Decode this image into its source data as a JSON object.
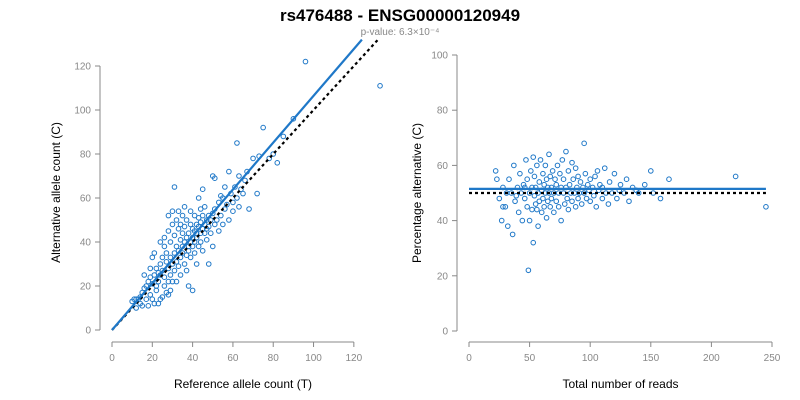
{
  "figure": {
    "title": "rs476488 - ENSG00000120949",
    "subtitle": "p-value: 6.3×10⁻⁴"
  },
  "colors": {
    "points": "#1f78c8",
    "fit_line": "#1f78c8",
    "reference_line": "#000000"
  },
  "chart_data": [
    {
      "type": "scatter",
      "xlabel": "Reference allele count (T)",
      "ylabel": "Alternative allele count (C)",
      "xlim": [
        0,
        130
      ],
      "ylim": [
        0,
        125
      ],
      "xticks": [
        0,
        20,
        40,
        60,
        80,
        100,
        120
      ],
      "yticks": [
        0,
        20,
        40,
        60,
        80,
        100,
        120
      ],
      "grid": false,
      "fit_line": {
        "x": [
          0,
          124
        ],
        "y": [
          0,
          132
        ]
      },
      "reference_line": {
        "x": [
          0,
          132
        ],
        "y": [
          0,
          132
        ]
      },
      "points": [
        [
          10,
          13
        ],
        [
          11,
          14
        ],
        [
          12,
          10
        ],
        [
          12,
          14
        ],
        [
          13,
          14
        ],
        [
          14,
          12
        ],
        [
          14,
          15
        ],
        [
          15,
          17
        ],
        [
          15,
          11
        ],
        [
          16,
          19
        ],
        [
          17,
          20
        ],
        [
          17,
          14
        ],
        [
          18,
          22
        ],
        [
          18,
          11
        ],
        [
          19,
          16
        ],
        [
          19,
          24
        ],
        [
          20,
          21
        ],
        [
          20,
          14
        ],
        [
          20,
          33
        ],
        [
          21,
          25
        ],
        [
          21,
          12
        ],
        [
          21,
          35
        ],
        [
          22,
          18
        ],
        [
          22,
          28
        ],
        [
          22,
          20
        ],
        [
          23,
          12
        ],
        [
          23,
          22
        ],
        [
          24,
          30
        ],
        [
          24,
          25
        ],
        [
          24,
          40
        ],
        [
          25,
          15
        ],
        [
          25,
          27
        ],
        [
          25,
          33
        ],
        [
          26,
          38
        ],
        [
          26,
          20
        ],
        [
          26,
          24
        ],
        [
          26,
          42
        ],
        [
          27,
          17
        ],
        [
          27,
          31
        ],
        [
          27,
          35
        ],
        [
          28,
          22
        ],
        [
          28,
          45
        ],
        [
          28,
          28
        ],
        [
          28,
          52
        ],
        [
          29,
          33
        ],
        [
          29,
          18
        ],
        [
          29,
          40
        ],
        [
          29,
          25
        ],
        [
          30,
          30
        ],
        [
          30,
          48
        ],
        [
          30,
          22
        ],
        [
          30,
          54
        ],
        [
          31,
          35
        ],
        [
          31,
          65
        ],
        [
          31,
          27
        ],
        [
          31,
          43
        ],
        [
          32,
          38
        ],
        [
          32,
          31
        ],
        [
          32,
          50
        ],
        [
          32,
          22
        ],
        [
          33,
          46
        ],
        [
          33,
          29
        ],
        [
          33,
          36
        ],
        [
          33,
          54
        ],
        [
          34,
          33
        ],
        [
          34,
          41
        ],
        [
          34,
          48
        ],
        [
          34,
          25
        ],
        [
          35,
          35
        ],
        [
          35,
          38
        ],
        [
          35,
          52
        ],
        [
          35,
          44
        ],
        [
          36,
          30
        ],
        [
          36,
          40
        ],
        [
          36,
          47
        ],
        [
          36,
          56
        ],
        [
          37,
          34
        ],
        [
          37,
          42
        ],
        [
          37,
          50
        ],
        [
          37,
          27
        ],
        [
          38,
          36
        ],
        [
          38,
          44
        ],
        [
          38,
          38
        ],
        [
          38,
          20
        ],
        [
          39,
          40
        ],
        [
          39,
          48
        ],
        [
          39,
          33
        ],
        [
          39,
          54
        ],
        [
          40,
          42
        ],
        [
          40,
          38
        ],
        [
          40,
          46
        ],
        [
          40,
          18
        ],
        [
          41,
          45
        ],
        [
          41,
          40
        ],
        [
          41,
          52
        ],
        [
          41,
          35
        ],
        [
          42,
          44
        ],
        [
          42,
          48
        ],
        [
          42,
          30
        ],
        [
          42,
          42
        ],
        [
          43,
          47
        ],
        [
          43,
          51
        ],
        [
          43,
          38
        ],
        [
          43,
          60
        ],
        [
          44,
          44
        ],
        [
          44,
          40
        ],
        [
          44,
          49
        ],
        [
          44,
          55
        ],
        [
          45,
          46
        ],
        [
          45,
          52
        ],
        [
          45,
          36
        ],
        [
          45,
          64
        ],
        [
          46,
          48
        ],
        [
          46,
          44
        ],
        [
          46,
          56
        ],
        [
          47,
          50
        ],
        [
          47,
          41
        ],
        [
          47,
          46
        ],
        [
          48,
          52
        ],
        [
          48,
          47
        ],
        [
          48,
          30
        ],
        [
          49,
          50
        ],
        [
          49,
          44
        ],
        [
          50,
          53
        ],
        [
          50,
          38
        ],
        [
          50,
          70
        ],
        [
          51,
          55
        ],
        [
          51,
          48
        ],
        [
          51,
          69
        ],
        [
          52,
          50
        ],
        [
          53,
          58
        ],
        [
          53,
          45
        ],
        [
          54,
          52
        ],
        [
          54,
          61
        ],
        [
          55,
          60
        ],
        [
          55,
          48
        ],
        [
          56,
          55
        ],
        [
          56,
          65
        ],
        [
          57,
          57
        ],
        [
          58,
          50
        ],
        [
          58,
          72
        ],
        [
          59,
          62
        ],
        [
          60,
          58
        ],
        [
          60,
          54
        ],
        [
          61,
          65
        ],
        [
          62,
          60
        ],
        [
          62,
          85
        ],
        [
          63,
          70
        ],
        [
          63,
          56
        ],
        [
          64,
          64
        ],
        [
          65,
          62
        ],
        [
          66,
          68
        ],
        [
          67,
          72
        ],
        [
          68,
          55
        ],
        [
          70,
          78
        ],
        [
          72,
          62
        ],
        [
          73,
          79
        ],
        [
          75,
          92
        ],
        [
          78,
          78
        ],
        [
          80,
          80
        ],
        [
          82,
          76
        ],
        [
          85,
          88
        ],
        [
          90,
          96
        ],
        [
          96,
          122
        ],
        [
          133,
          111
        ],
        [
          16,
          25
        ],
        [
          19,
          28
        ],
        [
          23,
          26
        ],
        [
          24,
          14
        ],
        [
          28,
          16
        ]
      ]
    },
    {
      "type": "scatter",
      "xlabel": "Total number of reads",
      "ylabel": "Percentage alternative (C)",
      "xlim": [
        0,
        250
      ],
      "ylim": [
        0,
        100
      ],
      "xticks": [
        0,
        50,
        100,
        150,
        200,
        250
      ],
      "yticks": [
        0,
        20,
        40,
        60,
        80,
        100
      ],
      "grid": false,
      "fit_line": {
        "x": [
          0,
          245
        ],
        "y": [
          51.5,
          51.5
        ]
      },
      "reference_line": {
        "x": [
          0,
          245
        ],
        "y": [
          50,
          50
        ]
      },
      "points": [
        [
          22,
          58
        ],
        [
          23,
          55
        ],
        [
          25,
          48
        ],
        [
          27,
          40
        ],
        [
          28,
          52
        ],
        [
          30,
          45
        ],
        [
          32,
          38
        ],
        [
          33,
          55
        ],
        [
          35,
          50
        ],
        [
          36,
          35
        ],
        [
          37,
          60
        ],
        [
          38,
          47
        ],
        [
          40,
          52
        ],
        [
          41,
          43
        ],
        [
          42,
          57
        ],
        [
          43,
          50
        ],
        [
          44,
          40
        ],
        [
          45,
          53
        ],
        [
          46,
          48
        ],
        [
          47,
          62
        ],
        [
          48,
          45
        ],
        [
          48,
          55
        ],
        [
          49,
          22
        ],
        [
          50,
          50
        ],
        [
          50,
          40
        ],
        [
          51,
          58
        ],
        [
          52,
          44
        ],
        [
          52,
          52
        ],
        [
          53,
          63
        ],
        [
          53,
          32
        ],
        [
          54,
          49
        ],
        [
          54,
          56
        ],
        [
          55,
          46
        ],
        [
          55,
          52
        ],
        [
          56,
          60
        ],
        [
          56,
          44
        ],
        [
          57,
          50
        ],
        [
          57,
          38
        ],
        [
          58,
          54
        ],
        [
          58,
          47
        ],
        [
          59,
          62
        ],
        [
          60,
          51
        ],
        [
          60,
          43
        ],
        [
          61,
          57
        ],
        [
          61,
          48
        ],
        [
          62,
          53
        ],
        [
          62,
          45
        ],
        [
          63,
          60
        ],
        [
          63,
          50
        ],
        [
          64,
          55
        ],
        [
          64,
          41
        ],
        [
          65,
          52
        ],
        [
          65,
          47
        ],
        [
          66,
          64
        ],
        [
          66,
          50
        ],
        [
          67,
          56
        ],
        [
          67,
          45
        ],
        [
          68,
          52
        ],
        [
          68,
          48
        ],
        [
          69,
          58
        ],
        [
          70,
          50
        ],
        [
          70,
          43
        ],
        [
          71,
          55
        ],
        [
          72,
          47
        ],
        [
          72,
          53
        ],
        [
          73,
          60
        ],
        [
          74,
          50
        ],
        [
          74,
          45
        ],
        [
          75,
          57
        ],
        [
          76,
          52
        ],
        [
          76,
          40
        ],
        [
          77,
          62
        ],
        [
          78,
          50
        ],
        [
          78,
          55
        ],
        [
          79,
          46
        ],
        [
          80,
          65
        ],
        [
          80,
          52
        ],
        [
          81,
          48
        ],
        [
          82,
          58
        ],
        [
          82,
          44
        ],
        [
          83,
          53
        ],
        [
          84,
          50
        ],
        [
          85,
          61
        ],
        [
          85,
          47
        ],
        [
          86,
          55
        ],
        [
          87,
          50
        ],
        [
          88,
          45
        ],
        [
          88,
          59
        ],
        [
          89,
          52
        ],
        [
          90,
          48
        ],
        [
          90,
          56
        ],
        [
          91,
          50
        ],
        [
          92,
          54
        ],
        [
          93,
          46
        ],
        [
          94,
          52
        ],
        [
          95,
          68
        ],
        [
          95,
          50
        ],
        [
          96,
          57
        ],
        [
          97,
          48
        ],
        [
          98,
          53
        ],
        [
          99,
          51
        ],
        [
          100,
          47
        ],
        [
          100,
          55
        ],
        [
          102,
          52
        ],
        [
          103,
          49
        ],
        [
          104,
          56
        ],
        [
          105,
          45
        ],
        [
          106,
          58
        ],
        [
          107,
          51
        ],
        [
          108,
          53
        ],
        [
          110,
          48
        ],
        [
          110,
          52
        ],
        [
          112,
          59
        ],
        [
          113,
          50
        ],
        [
          115,
          46
        ],
        [
          116,
          54
        ],
        [
          118,
          50
        ],
        [
          120,
          57
        ],
        [
          122,
          48
        ],
        [
          124,
          51
        ],
        [
          125,
          53
        ],
        [
          128,
          50
        ],
        [
          130,
          55
        ],
        [
          132,
          47
        ],
        [
          135,
          52
        ],
        [
          138,
          51
        ],
        [
          140,
          50
        ],
        [
          145,
          53
        ],
        [
          150,
          58
        ],
        [
          152,
          50
        ],
        [
          158,
          48
        ],
        [
          165,
          55
        ],
        [
          28,
          45
        ],
        [
          31,
          50
        ],
        [
          39,
          49
        ],
        [
          46,
          52
        ],
        [
          220,
          56
        ],
        [
          245,
          45
        ]
      ]
    }
  ]
}
